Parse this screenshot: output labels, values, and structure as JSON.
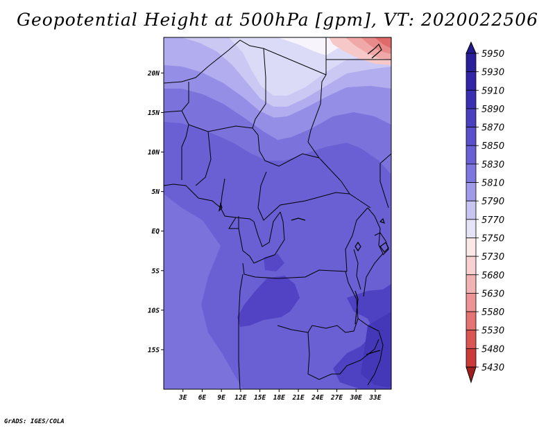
{
  "title": "Geopotential Height at 500hPa [gpm], VT: 2020022506",
  "credit": "GrADS: IGES/COLA",
  "map": {
    "lat_range": [
      -20,
      24.5
    ],
    "lon_range": [
      0,
      35.5
    ],
    "lat_ticks": [
      {
        "value": 20,
        "label": "20N"
      },
      {
        "value": 15,
        "label": "15N"
      },
      {
        "value": 10,
        "label": "10N"
      },
      {
        "value": 5,
        "label": "5N"
      },
      {
        "value": 0,
        "label": "EQ"
      },
      {
        "value": -5,
        "label": "5S"
      },
      {
        "value": -10,
        "label": "10S"
      },
      {
        "value": -15,
        "label": "15S"
      }
    ],
    "lon_ticks": [
      {
        "value": 3,
        "label": "3E"
      },
      {
        "value": 6,
        "label": "6E"
      },
      {
        "value": 9,
        "label": "9E"
      },
      {
        "value": 12,
        "label": "12E"
      },
      {
        "value": 15,
        "label": "15E"
      },
      {
        "value": 18,
        "label": "18E"
      },
      {
        "value": 21,
        "label": "21E"
      },
      {
        "value": 24,
        "label": "24E"
      },
      {
        "value": 27,
        "label": "27E"
      },
      {
        "value": 30,
        "label": "30E"
      },
      {
        "value": 33,
        "label": "33E"
      }
    ]
  },
  "colorbar": {
    "levels": [
      {
        "label": "5950",
        "color": "#2a1f9a"
      },
      {
        "label": "5930",
        "color": "#3224a8"
      },
      {
        "label": "5910",
        "color": "#3a2fb3"
      },
      {
        "label": "5890",
        "color": "#4a3fbf"
      },
      {
        "label": "5870",
        "color": "#5a4fcc"
      },
      {
        "label": "5850",
        "color": "#6a60d6"
      },
      {
        "label": "5830",
        "color": "#7f77e0"
      },
      {
        "label": "5810",
        "color": "#a09ae8"
      },
      {
        "label": "5790",
        "color": "#c8c6f1"
      },
      {
        "label": "5770",
        "color": "#e4e3f8"
      },
      {
        "label": "5750",
        "color": "#fbe9e9"
      },
      {
        "label": "5730",
        "color": "#f8d0d0"
      },
      {
        "label": "5680",
        "color": "#f2b3b3"
      },
      {
        "label": "5630",
        "color": "#ec9393"
      },
      {
        "label": "5580",
        "color": "#e47373"
      },
      {
        "label": "5530",
        "color": "#dc5555"
      },
      {
        "label": "5480",
        "color": "#cc3a3a"
      },
      {
        "label": "5430",
        "color": "#b52626"
      }
    ],
    "top_tip_color": "#241a8f",
    "bottom_tip_color": "#a01e1e"
  }
}
